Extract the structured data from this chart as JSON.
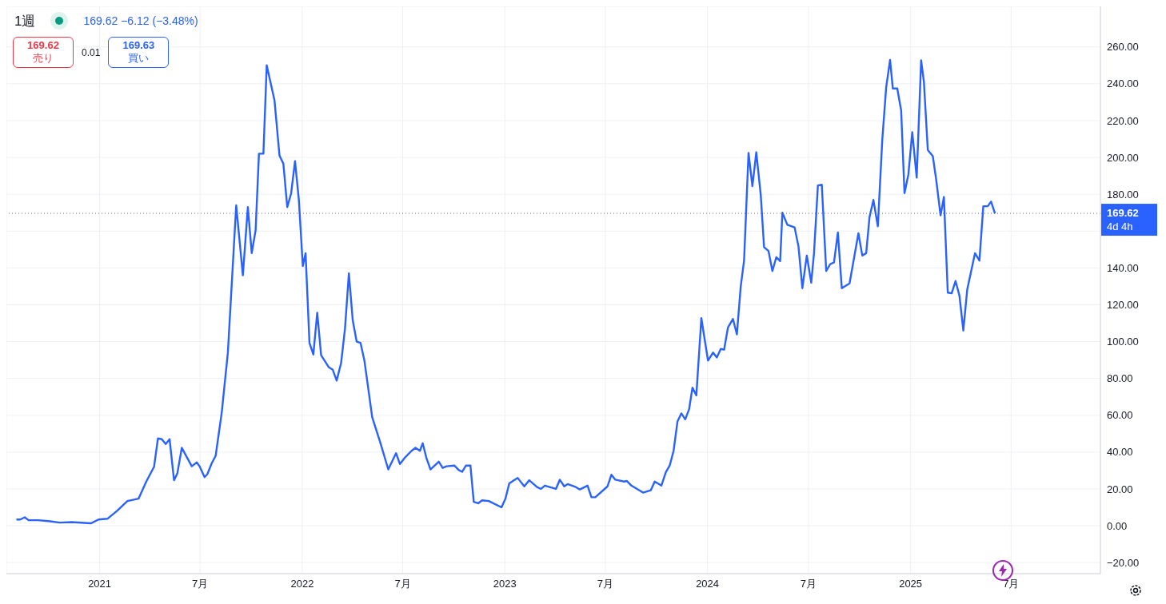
{
  "chart_data": {
    "type": "line",
    "title": "1週",
    "subtitle": "169.62 −6.12 (−3.48%)",
    "annotations": [
      "169.62",
      "売り",
      "0.01",
      "169.63",
      "買い",
      "4d 4h"
    ],
    "series": [
      {
        "color": "#2962ff",
        "x": [
          "2020-08-04",
          "2020-08-11",
          "2020-08-19",
          "2020-08-26",
          "2020-09-12",
          "2020-10-01",
          "2020-10-21",
          "2020-11-12",
          "2020-12-16",
          "2020-12-30",
          "2021-01-15",
          "2021-02-01",
          "2021-02-20",
          "2021-03-12",
          "2021-03-26",
          "2021-04-09",
          "2021-04-16",
          "2021-04-23",
          "2021-04-30",
          "2021-05-07",
          "2021-05-15",
          "2021-05-21",
          "2021-05-29",
          "2021-06-16",
          "2021-06-25",
          "2021-06-30",
          "2021-07-09",
          "2021-07-14",
          "2021-07-22",
          "2021-07-29",
          "2021-08-09",
          "2021-08-20",
          "2021-09-04",
          "2021-09-16",
          "2021-09-25",
          "2021-10-02",
          "2021-10-09",
          "2021-10-15",
          "2021-10-23",
          "2021-10-29",
          "2021-11-12",
          "2021-11-21",
          "2021-11-28",
          "2021-12-05",
          "2021-12-12",
          "2021-12-19",
          "2021-12-26",
          "2022-01-02",
          "2022-01-07",
          "2022-01-14",
          "2022-01-21",
          "2022-01-28",
          "2022-02-04",
          "2022-02-18",
          "2022-02-25",
          "2022-03-04",
          "2022-03-12",
          "2022-03-19",
          "2022-03-26",
          "2022-04-02",
          "2022-04-09",
          "2022-04-16",
          "2022-04-23",
          "2022-05-07",
          "2022-05-21",
          "2022-06-05",
          "2022-06-19",
          "2022-06-26",
          "2022-07-05",
          "2022-07-17",
          "2022-07-24",
          "2022-08-01",
          "2022-08-06",
          "2022-08-13",
          "2022-08-20",
          "2022-09-04",
          "2022-09-11",
          "2022-09-18",
          "2022-10-02",
          "2022-10-10",
          "2022-10-16",
          "2022-10-23",
          "2022-10-31",
          "2022-11-06",
          "2022-11-14",
          "2022-11-21",
          "2022-12-03",
          "2022-12-26",
          "2023-01-02",
          "2023-01-09",
          "2023-01-24",
          "2023-02-05",
          "2023-02-14",
          "2023-02-28",
          "2023-03-07",
          "2023-03-14",
          "2023-04-03",
          "2023-04-10",
          "2023-04-18",
          "2023-04-24",
          "2023-05-09",
          "2023-05-16",
          "2023-05-30",
          "2023-06-06",
          "2023-06-13",
          "2023-07-05",
          "2023-07-12",
          "2023-07-19",
          "2023-08-04",
          "2023-08-09",
          "2023-08-17",
          "2023-09-07",
          "2023-09-21",
          "2023-09-28",
          "2023-10-10",
          "2023-10-18",
          "2023-10-25",
          "2023-11-01",
          "2023-11-08",
          "2023-11-15",
          "2023-11-22",
          "2023-11-29",
          "2023-12-05",
          "2023-12-12",
          "2023-12-21",
          "2024-01-02",
          "2024-01-11",
          "2024-01-18",
          "2024-01-25",
          "2024-01-31",
          "2024-02-07",
          "2024-02-16",
          "2024-02-23",
          "2024-03-01",
          "2024-03-07",
          "2024-03-15",
          "2024-03-22",
          "2024-03-29",
          "2024-04-06",
          "2024-04-12",
          "2024-04-20",
          "2024-04-27",
          "2024-05-04",
          "2024-05-11",
          "2024-05-15",
          "2024-05-24",
          "2024-06-06",
          "2024-06-13",
          "2024-06-20",
          "2024-06-28",
          "2024-07-06",
          "2024-07-11",
          "2024-07-18",
          "2024-07-25",
          "2024-08-02",
          "2024-08-09",
          "2024-08-16",
          "2024-08-23",
          "2024-08-30",
          "2024-09-13",
          "2024-09-29",
          "2024-10-06",
          "2024-10-13",
          "2024-10-19",
          "2024-10-26",
          "2024-11-03",
          "2024-11-11",
          "2024-11-18",
          "2024-11-25",
          "2024-11-30",
          "2024-12-08",
          "2024-12-15",
          "2024-12-21",
          "2024-12-28",
          "2025-01-04",
          "2025-01-12",
          "2025-01-20",
          "2025-01-25",
          "2025-02-01",
          "2025-02-10",
          "2025-02-16",
          "2025-02-24",
          "2025-03-02",
          "2025-03-09",
          "2025-03-16",
          "2025-03-23",
          "2025-03-30",
          "2025-04-06",
          "2025-04-13",
          "2025-04-27",
          "2025-05-05",
          "2025-05-12",
          "2025-05-20",
          "2025-05-26",
          "2025-06-02"
        ],
        "values": [
          3.4,
          3.4,
          4.6,
          3,
          3,
          2.5,
          1.7,
          2,
          1.3,
          3.4,
          3.8,
          8,
          13.4,
          14.7,
          24,
          32,
          47.4,
          47,
          44.4,
          47,
          24.7,
          28.5,
          42.3,
          32.3,
          34.4,
          32.3,
          26.4,
          28,
          34,
          38,
          61.6,
          94,
          174,
          136,
          173,
          148,
          160.5,
          202,
          202,
          250,
          231,
          201,
          196.6,
          173,
          180.5,
          198,
          176.5,
          141,
          148,
          99.3,
          93,
          115.7,
          92.6,
          86,
          84.7,
          78.8,
          88.4,
          107,
          137,
          111.5,
          100,
          99.3,
          89.7,
          59,
          45.7,
          30.6,
          39.4,
          33.5,
          37,
          40.7,
          42.3,
          40.7,
          44.8,
          36.5,
          30.6,
          34.8,
          31.4,
          32.3,
          32.7,
          30.2,
          29.3,
          32.7,
          32.7,
          13,
          12.2,
          13.8,
          13.4,
          10,
          14.7,
          23,
          26,
          21.4,
          24.7,
          21,
          20,
          21.8,
          20,
          25,
          21.4,
          22.6,
          21,
          19.7,
          21.8,
          15.5,
          15.5,
          21.4,
          27.7,
          25,
          24,
          24.3,
          21.8,
          18,
          19.3,
          24,
          21.8,
          29,
          32.7,
          40.7,
          56.6,
          61,
          57.8,
          63.3,
          75,
          70.8,
          112.7,
          89.7,
          94,
          91.4,
          96,
          95.6,
          107.7,
          112.3,
          103.9,
          130,
          144,
          202.4,
          184.4,
          202.8,
          179.8,
          151.3,
          149.2,
          138.3,
          145.8,
          143.7,
          170,
          163.4,
          162,
          151.7,
          129,
          146.7,
          132,
          148,
          184.8,
          185.2,
          138.3,
          142,
          143,
          159.3,
          129,
          131.6,
          158.8,
          146.7,
          148,
          167.6,
          176.9,
          162.6,
          209.6,
          238,
          253,
          237.4,
          237.4,
          225.5,
          180.6,
          190.7,
          213.7,
          189,
          252.7,
          241,
          204,
          200.7,
          188.2,
          168.5,
          178.5,
          126.6,
          126.2,
          132.9,
          124.9,
          106,
          128.2,
          148,
          144,
          173.5,
          173.5,
          176,
          169.62
        ]
      }
    ],
    "xlim": [
      "2020-07-17",
      "2025-12-09"
    ],
    "xticks": [
      {
        "value": "2021-01-01",
        "label": "2021"
      },
      {
        "value": "2021-07-01",
        "label": "7月"
      },
      {
        "value": "2022-01-01",
        "label": "2022"
      },
      {
        "value": "2022-07-01",
        "label": "7月"
      },
      {
        "value": "2023-01-01",
        "label": "2023"
      },
      {
        "value": "2023-07-01",
        "label": "7月"
      },
      {
        "value": "2024-01-01",
        "label": "2024"
      },
      {
        "value": "2024-07-01",
        "label": "7月"
      },
      {
        "value": "2025-01-01",
        "label": "2025"
      },
      {
        "value": "2025-07-01",
        "label": "7月"
      }
    ],
    "ylim": [
      -26,
      282
    ],
    "yticks": [
      {
        "value": -20,
        "label": "−20.00"
      },
      {
        "value": 0,
        "label": "0.00"
      },
      {
        "value": 20,
        "label": "20.00"
      },
      {
        "value": 40,
        "label": "40.00"
      },
      {
        "value": 60,
        "label": "60.00"
      },
      {
        "value": 80,
        "label": "80.00"
      },
      {
        "value": 100,
        "label": "100.00"
      },
      {
        "value": 120,
        "label": "120.00"
      },
      {
        "value": 140,
        "label": "140.00"
      },
      {
        "value": 160,
        "label": null
      },
      {
        "value": 180,
        "label": "180.00"
      },
      {
        "value": 200,
        "label": "200.00"
      },
      {
        "value": 220,
        "label": "220.00"
      },
      {
        "value": 240,
        "label": "240.00"
      },
      {
        "value": 260,
        "label": "260.00"
      }
    ],
    "ref_lines": [
      {
        "axis": "y",
        "value": 169.62,
        "label": "169.62",
        "color": "#2962ff",
        "line_style": "dotted"
      }
    ],
    "grid": true,
    "marker": "none",
    "line_style": "solid"
  }
}
